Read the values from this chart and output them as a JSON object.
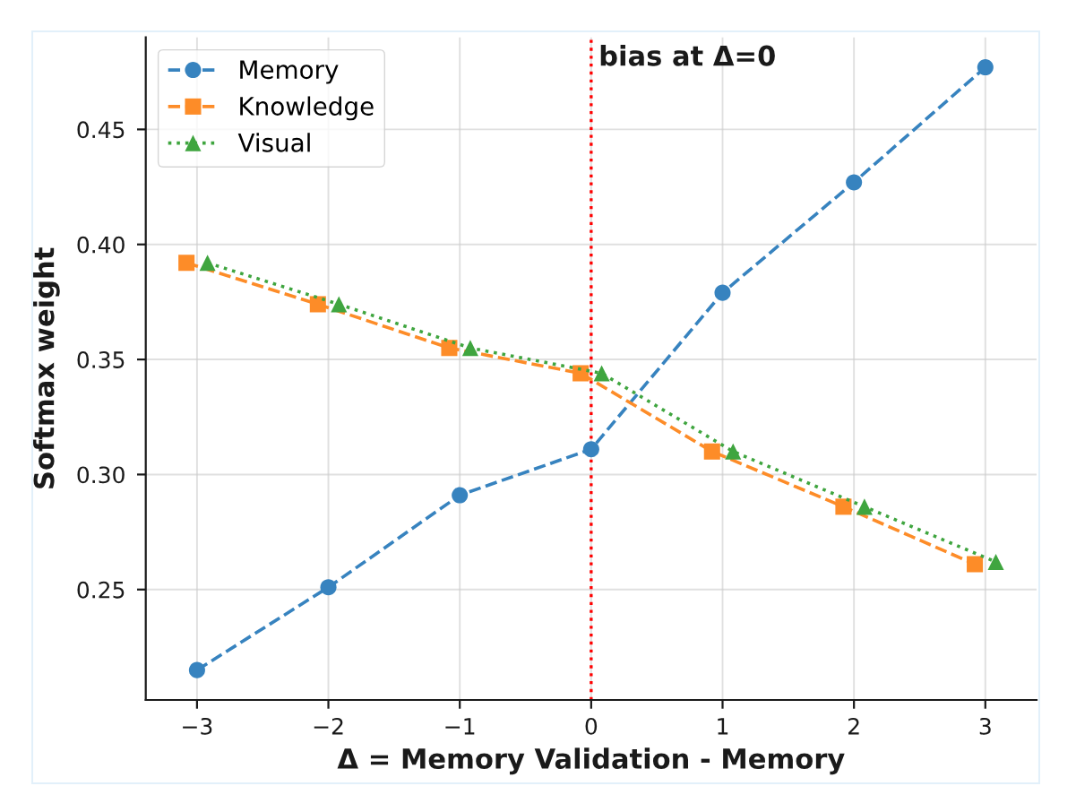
{
  "chart_data": {
    "type": "line",
    "xlabel": "Δ = Memory Validation - Memory",
    "ylabel": "Softmax weight",
    "xlim": [
      -3.39,
      3.39
    ],
    "xticks": [
      {
        "value": -3,
        "label": "−3"
      },
      {
        "value": -2,
        "label": "−2"
      },
      {
        "value": -1,
        "label": "−1"
      },
      0,
      1,
      2,
      3
    ],
    "ylim": [
      0.202,
      0.49
    ],
    "yticks": [
      0.25,
      {
        "value": 0.3,
        "label": "0.30"
      },
      0.35,
      {
        "value": 0.4,
        "label": "0.40"
      },
      0.45
    ],
    "grid": true,
    "legend": "top left",
    "series": [
      {
        "name": "Memory",
        "color": "#3783bf",
        "marker": "circle",
        "line_style": "dashed",
        "x": [
          -3,
          -2,
          -1,
          0,
          1,
          2,
          3
        ],
        "values": [
          0.215,
          0.251,
          0.291,
          0.311,
          0.379,
          0.427,
          0.477
        ]
      },
      {
        "name": "Knowledge",
        "color": "#fd8c28",
        "marker": "square",
        "line_style": "dashed",
        "x": [
          -3.08,
          -2.08,
          -1.08,
          -0.08,
          0.92,
          1.92,
          2.92
        ],
        "values": [
          0.392,
          0.374,
          0.355,
          0.344,
          0.31,
          0.286,
          0.261
        ]
      },
      {
        "name": "Visual",
        "color": "#3fa53f",
        "marker": "triangle",
        "line_style": "dotted",
        "x": [
          -2.92,
          -1.92,
          -0.92,
          0.08,
          1.08,
          2.08,
          3.08
        ],
        "values": [
          0.392,
          0.374,
          0.355,
          0.344,
          0.31,
          0.286,
          0.262
        ]
      }
    ],
    "ref_lines": [
      {
        "axis": "x",
        "value": 0,
        "label": "bias at Δ=0",
        "color": "#ff0000",
        "line_style": "dotted"
      }
    ]
  }
}
